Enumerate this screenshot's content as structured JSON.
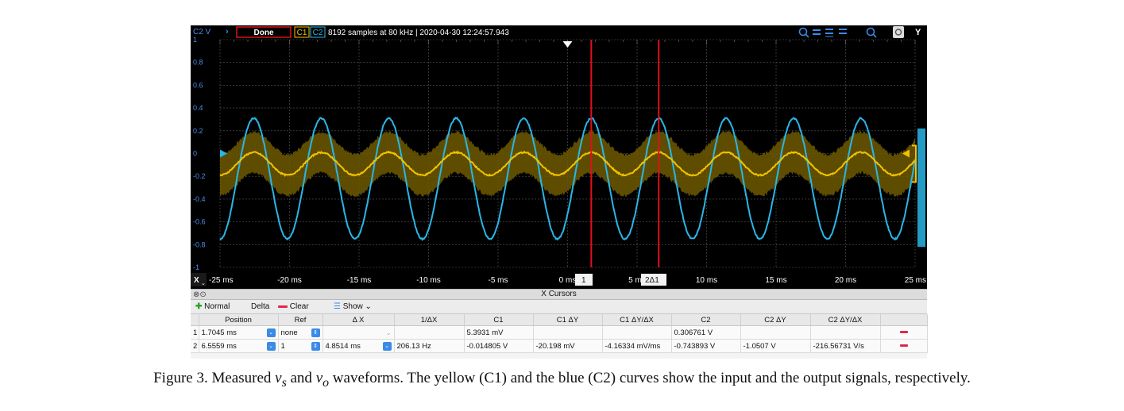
{
  "top_bar": {
    "channel_label": "C2 V",
    "status_button": "Done",
    "ch1_tab": "C1",
    "ch2_tab": "C2",
    "info": "8192 samples at 80 kHz | 2020-04-30 12:24:57.943",
    "right_menu_label": "Y"
  },
  "y_axis": {
    "ticks": [
      "1",
      "0.8",
      "0.6",
      "0.4",
      "0.2",
      "0",
      "-0.2",
      "-0.4",
      "-0.6",
      "-0.8",
      "-1"
    ]
  },
  "x_axis": {
    "menu_label": "X",
    "ticks": [
      "-25 ms",
      "-20 ms",
      "-15 ms",
      "-10 ms",
      "-5 ms",
      "0 ms",
      "5 ms",
      "10 ms",
      "15 ms",
      "20 ms",
      "25 ms"
    ],
    "cursor1_label": "1",
    "cursor2_label": "2Δ1"
  },
  "cursors_panel": {
    "title": "X Cursors",
    "toolbar": {
      "normal": "Normal",
      "delta": "Delta",
      "clear": "Clear",
      "show": "Show"
    },
    "columns": [
      "",
      "Position",
      "Ref",
      "Δ X",
      "1/ΔX",
      "C1",
      "C1 ΔY",
      "C1 ΔY/ΔX",
      "C2",
      "C2 ΔY",
      "C2 ΔY/ΔX",
      ""
    ],
    "rows": [
      {
        "idx": "1",
        "position": "1.7045 ms",
        "ref": "none",
        "dx": "",
        "inv_dx": "",
        "c1": "5.3931 mV",
        "c1_dy": "",
        "c1_slope": "",
        "c2": "0.306761 V",
        "c2_dy": "",
        "c2_slope": ""
      },
      {
        "idx": "2",
        "position": "6.5559 ms",
        "ref": "1",
        "dx": "4.8514 ms",
        "inv_dx": "206.13 Hz",
        "c1": "-0.014805 V",
        "c1_dy": "-20.198 mV",
        "c1_slope": "-4.16334 mV/ms",
        "c2": "-0.743893 V",
        "c2_dy": "-1.0507 V",
        "c2_slope": "-216.56731 V/s"
      }
    ]
  },
  "caption": {
    "prefix": "Figure 3. Measured ",
    "vs": "v",
    "vs_sub": "s",
    "and": " and ",
    "vo": "v",
    "vo_sub": "o",
    "suffix": " waveforms. The yellow (C1) and the blue (C2) curves show the input and the output signals, respectively."
  },
  "chart_data": {
    "type": "line",
    "xlabel": "",
    "ylabel": "C2 V",
    "xlim": [
      -25,
      25
    ],
    "ylim": [
      -1,
      1
    ],
    "grid": true,
    "frequency_hz": 206,
    "series": [
      {
        "name": "C1",
        "color": "#f2c200",
        "offset": -0.09,
        "amplitude": 0.1,
        "noise_band": 0.18,
        "phase_peak_ms": 1.7
      },
      {
        "name": "C2",
        "color": "#2ab6e6",
        "offset": -0.22,
        "amplitude": 0.53,
        "phase_peak_ms": 1.7
      }
    ],
    "cursors_ms": [
      1.7045,
      6.5559
    ],
    "trigger_ms": 0
  },
  "colors": {
    "c1": "#f2c200",
    "c2": "#2ab6e6",
    "cursor": "#e0101a",
    "grid": "#5a5a5a"
  }
}
